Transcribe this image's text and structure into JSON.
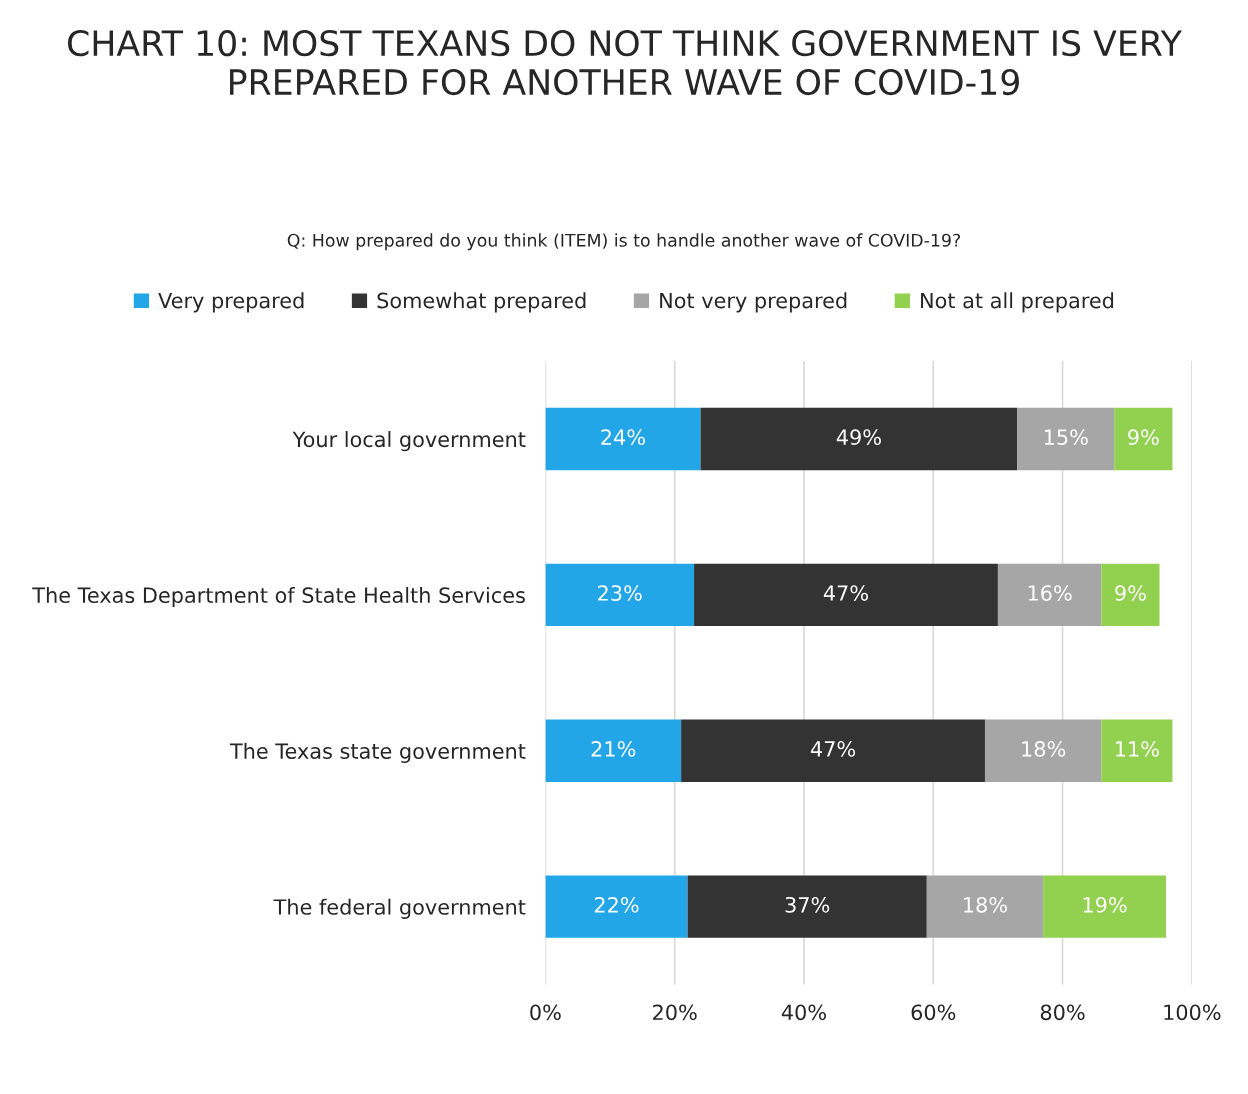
{
  "chart_data": {
    "type": "bar",
    "orientation": "horizontal",
    "stacked": true,
    "title": "CHART 10: MOST TEXANS DO NOT THINK GOVERNMENT IS VERY PREPARED FOR ANOTHER WAVE OF COVID-19",
    "subtitle": "Q: How prepared do you think (ITEM) is to handle another wave of COVID-19?",
    "categories": [
      "Your local government",
      "The Texas Department of State Health Services",
      "The Texas state government",
      "The federal government"
    ],
    "series": [
      {
        "name": "Very prepared",
        "color": "#22a6e8",
        "values": [
          24,
          23,
          21,
          22
        ],
        "value_labels": [
          "24%",
          "23%",
          "21%",
          "22%"
        ]
      },
      {
        "name": "Somewhat prepared",
        "color": "#333333",
        "values": [
          49,
          47,
          47,
          37
        ],
        "value_labels": [
          "49%",
          "47%",
          "47%",
          "37%"
        ]
      },
      {
        "name": "Not very prepared",
        "color": "#a6a6a6",
        "values": [
          15,
          16,
          18,
          18
        ],
        "value_labels": [
          "15%",
          "16%",
          "18%",
          "18%"
        ]
      },
      {
        "name": "Not at all prepared",
        "color": "#92d050",
        "values": [
          9,
          9,
          11,
          19
        ],
        "value_labels": [
          "9%",
          "9%",
          "11%",
          "19%"
        ]
      }
    ],
    "xlim": [
      0,
      100
    ],
    "xticks": [
      {
        "value": 0,
        "label": "0%"
      },
      {
        "value": 20,
        "label": "20%"
      },
      {
        "value": 40,
        "label": "40%"
      },
      {
        "value": 60,
        "label": "60%"
      },
      {
        "value": 80,
        "label": "80%"
      },
      {
        "value": 100,
        "label": "100%"
      }
    ],
    "grid": "x",
    "legend": "top"
  }
}
